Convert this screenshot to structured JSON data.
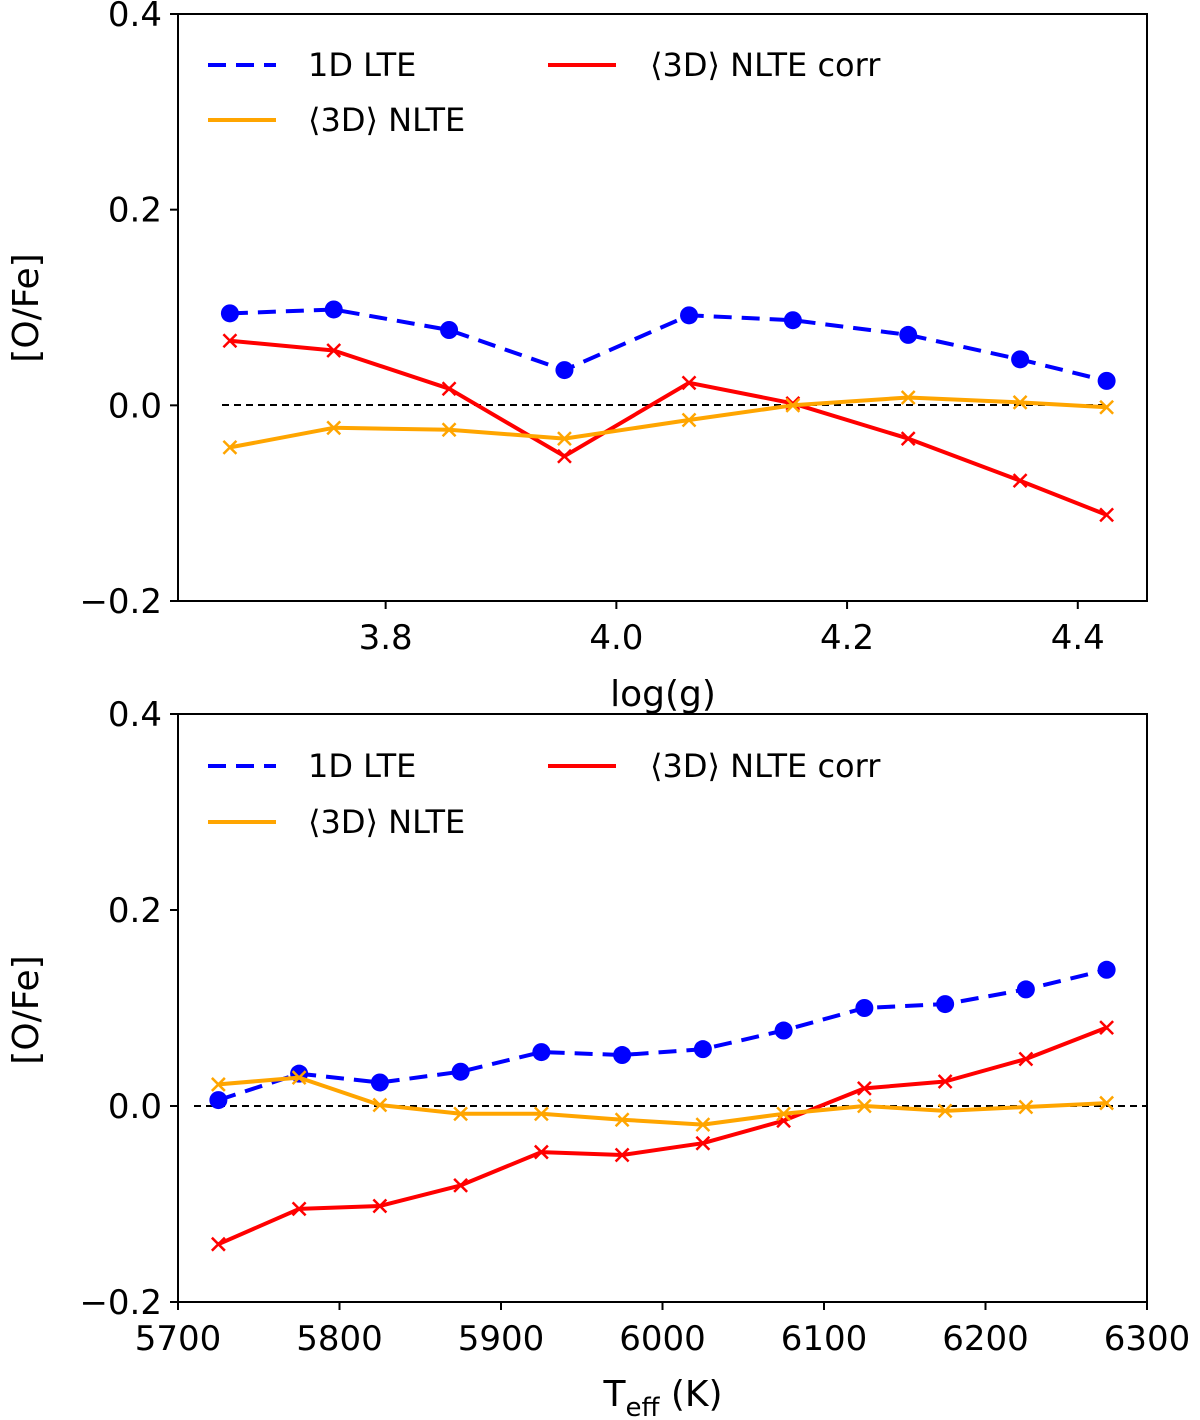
{
  "figure": {
    "background": "#ffffff"
  },
  "chart_data": [
    {
      "type": "line",
      "xlabel": "log(g)",
      "ylabel": "[O/Fe]",
      "xlim": [
        3.62,
        4.46
      ],
      "ylim": [
        -0.2,
        0.4
      ],
      "xticks": [
        3.8,
        4.0,
        4.2,
        4.4
      ],
      "xtick_labels": [
        "3.8",
        "4.0",
        "4.2",
        "4.4"
      ],
      "yticks": [
        -0.2,
        0.0,
        0.2,
        0.4
      ],
      "ytick_labels": [
        "−0.2",
        "0.0",
        "0.2",
        "0.4"
      ],
      "reference_line": {
        "y": 0.0,
        "style": "dashed",
        "x_range": [
          3.66,
          4.45
        ]
      },
      "legend_position": "top-left",
      "x": [
        3.665,
        3.755,
        3.855,
        3.955,
        4.063,
        4.153,
        4.253,
        4.35,
        4.425
      ],
      "series": [
        {
          "name": "1D LTE",
          "color": "#0000ff",
          "linestyle": "dashed",
          "marker": "circle",
          "values": [
            0.094,
            0.098,
            0.077,
            0.036,
            0.092,
            0.087,
            0.072,
            0.047,
            0.025
          ]
        },
        {
          "name": "⟨3D⟩ NLTE corr",
          "color": "#ff0000",
          "linestyle": "solid",
          "marker": "x",
          "values": [
            0.066,
            0.056,
            0.017,
            -0.052,
            0.023,
            0.002,
            -0.034,
            -0.077,
            -0.112
          ]
        },
        {
          "name": "⟨3D⟩ NLTE",
          "color": "#ffa500",
          "linestyle": "solid",
          "marker": "x",
          "values": [
            -0.043,
            -0.023,
            -0.025,
            -0.034,
            -0.015,
            0.0,
            0.008,
            0.003,
            -0.002
          ]
        }
      ]
    },
    {
      "type": "line",
      "xlabel_main": "T",
      "xlabel_sub": "eff",
      "xlabel_unit": " (K)",
      "ylabel": "[O/Fe]",
      "xlim": [
        5700,
        6300
      ],
      "ylim": [
        -0.2,
        0.4
      ],
      "xticks": [
        5700,
        5800,
        5900,
        6000,
        6100,
        6200,
        6300
      ],
      "xtick_labels": [
        "5700",
        "5800",
        "5900",
        "6000",
        "6100",
        "6200",
        "6300"
      ],
      "yticks": [
        -0.2,
        0.0,
        0.2,
        0.4
      ],
      "ytick_labels": [
        "−0.2",
        "0.0",
        "0.2",
        "0.4"
      ],
      "reference_line": {
        "y": 0.0,
        "style": "dashed",
        "x_range": [
          5710,
          6300
        ]
      },
      "legend_position": "top-left",
      "x": [
        5725,
        5775,
        5825,
        5875,
        5925,
        5975,
        6025,
        6075,
        6125,
        6175,
        6225,
        6275
      ],
      "series": [
        {
          "name": "1D LTE",
          "color": "#0000ff",
          "linestyle": "dashed",
          "marker": "circle",
          "values": [
            0.006,
            0.033,
            0.024,
            0.035,
            0.055,
            0.052,
            0.058,
            0.077,
            0.1,
            0.104,
            0.119,
            0.139
          ]
        },
        {
          "name": "⟨3D⟩ NLTE corr",
          "color": "#ff0000",
          "linestyle": "solid",
          "marker": "x",
          "values": [
            -0.141,
            -0.105,
            -0.102,
            -0.081,
            -0.047,
            -0.05,
            -0.038,
            -0.015,
            0.018,
            0.025,
            0.048,
            0.08
          ]
        },
        {
          "name": "⟨3D⟩ NLTE",
          "color": "#ffa500",
          "linestyle": "solid",
          "marker": "x",
          "values": [
            0.022,
            0.029,
            0.001,
            -0.008,
            -0.008,
            -0.014,
            -0.019,
            -0.008,
            0.0,
            -0.005,
            -0.001,
            0.003
          ]
        }
      ]
    }
  ]
}
